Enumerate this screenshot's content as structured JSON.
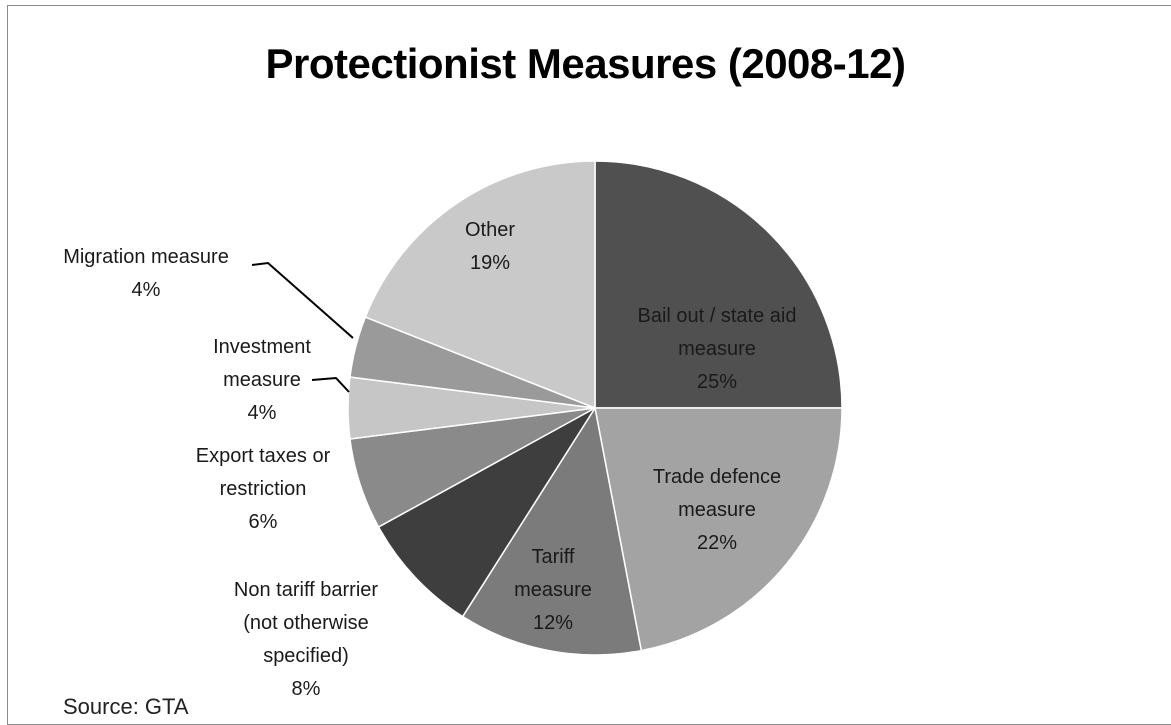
{
  "chart_data": {
    "type": "pie",
    "title": "Protectionist Measures (2008-12)",
    "source": "Source: GTA",
    "slices": [
      {
        "label": [
          "Bail out / state aid",
          "measure"
        ],
        "value": 25,
        "value_label": "25%",
        "color": "#505050"
      },
      {
        "label": [
          "Trade defence",
          "measure"
        ],
        "value": 22,
        "value_label": "22%",
        "color": "#a3a3a3"
      },
      {
        "label": [
          "Tariff",
          "measure"
        ],
        "value": 12,
        "value_label": "12%",
        "color": "#7b7b7b"
      },
      {
        "label": [
          "Non tariff barrier",
          "(not otherwise",
          "specified)"
        ],
        "value": 8,
        "value_label": "8%",
        "color": "#3e3e3e"
      },
      {
        "label": [
          "Export taxes or",
          "restriction"
        ],
        "value": 6,
        "value_label": "6%",
        "color": "#8a8a8a"
      },
      {
        "label": [
          "Investment",
          "measure"
        ],
        "value": 4,
        "value_label": "4%",
        "color": "#c6c6c6"
      },
      {
        "label": [
          "Migration measure"
        ],
        "value": 4,
        "value_label": "4%",
        "color": "#9a9a9a"
      },
      {
        "label": [
          "Other"
        ],
        "value": 19,
        "value_label": "19%",
        "color": "#c9c9c9"
      }
    ]
  }
}
